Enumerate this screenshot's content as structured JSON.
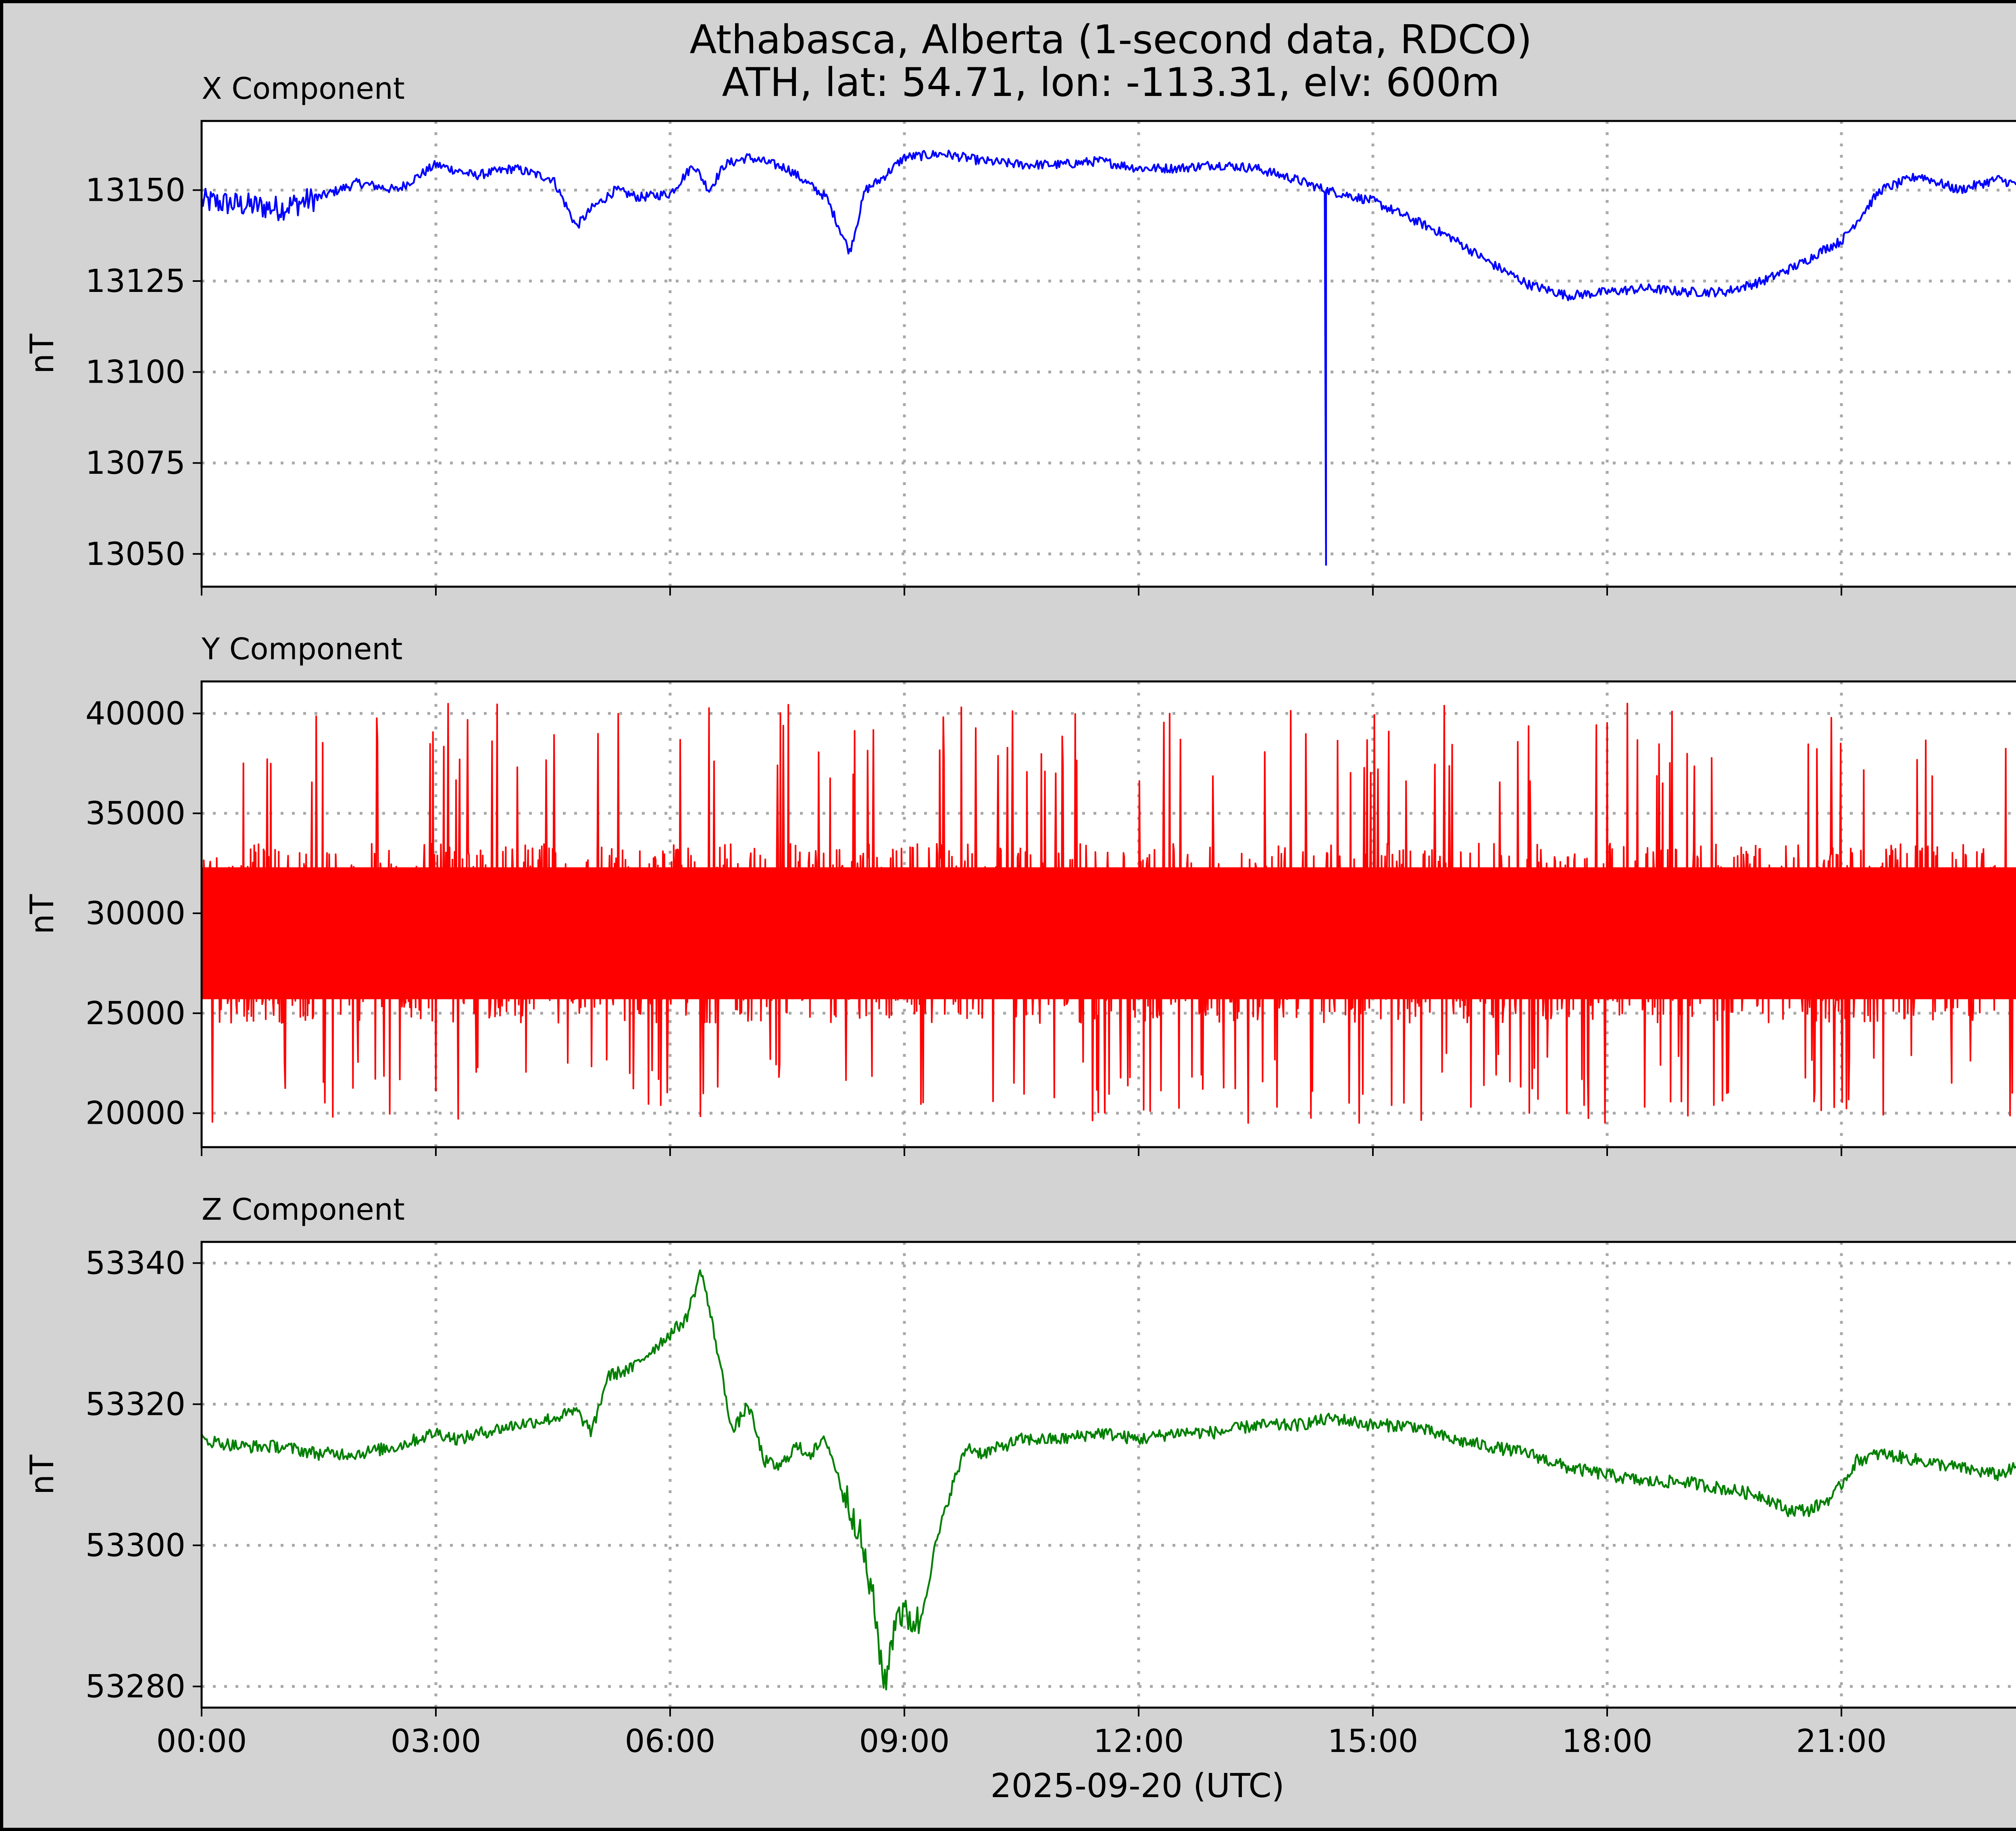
{
  "figure": {
    "title_line1": "Athabasca, Alberta (1-second data, RDCO)",
    "title_line2": "ATH, lat: 54.71, lon: -113.31, elv: 600m",
    "background": "#d3d3d3",
    "grid_color": "#a9a9a9"
  },
  "chart_data": [
    {
      "type": "line",
      "title": "X Component",
      "ylabel": "nT",
      "xlabel": "",
      "color": "#0000ff",
      "grid": true,
      "xlim_hours": [
        0,
        24
      ],
      "ylim": [
        13041,
        13169
      ],
      "yticks": [
        13050,
        13075,
        13100,
        13125,
        13150
      ],
      "ytick_labels": [
        "13050",
        "13075",
        "13100",
        "13125",
        "13150"
      ],
      "x_hours": [
        0,
        0.5,
        1,
        1.5,
        2,
        2.5,
        3,
        3.5,
        4,
        4.5,
        4.8,
        5,
        5.3,
        5.6,
        6,
        6.3,
        6.5,
        6.7,
        7,
        7.5,
        8,
        8.3,
        8.5,
        8.7,
        9,
        9.5,
        10,
        10.5,
        11,
        11.5,
        12,
        12.5,
        13,
        13.5,
        14,
        14.4,
        14.4,
        14.4,
        15,
        15.5,
        16,
        16.5,
        17,
        17.5,
        18,
        18.5,
        19,
        19.5,
        20,
        20.5,
        20.8,
        21,
        21.5,
        22,
        22.5,
        23,
        23.5,
        24
      ],
      "values": [
        13147,
        13146,
        13145,
        13148,
        13152,
        13150,
        13157,
        13154,
        13156,
        13153,
        13140,
        13145,
        13150,
        13148,
        13149,
        13157,
        13150,
        13157,
        13159,
        13156,
        13148,
        13133,
        13150,
        13153,
        13159,
        13160,
        13158,
        13157,
        13157,
        13158,
        13156,
        13156,
        13157,
        13156,
        13153,
        13150,
        13047,
        13150,
        13147,
        13142,
        13137,
        13130,
        13124,
        13121,
        13122,
        13123,
        13122,
        13122,
        13125,
        13130,
        13134,
        13136,
        13150,
        13154,
        13150,
        13153,
        13150,
        13149
      ]
    },
    {
      "type": "line",
      "title": "Y Component",
      "ylabel": "nT",
      "xlabel": "",
      "color": "#ff0000",
      "grid": true,
      "xlim_hours": [
        0,
        24
      ],
      "ylim": [
        18300,
        41600
      ],
      "yticks": [
        20000,
        25000,
        30000,
        35000,
        40000
      ],
      "ytick_labels": [
        "20000",
        "25000",
        "30000",
        "35000",
        "40000"
      ],
      "series_center": 29000,
      "dense_band": [
        24500,
        33500
      ],
      "spike_range": [
        19500,
        40500
      ],
      "note_values": "dense high-amplitude noise throughout the day"
    },
    {
      "type": "line",
      "title": "Z Component",
      "ylabel": "nT",
      "xlabel": "2025-09-20 (UTC)",
      "color": "#008000",
      "grid": true,
      "xlim_hours": [
        0,
        24
      ],
      "ylim": [
        53277,
        53343
      ],
      "yticks": [
        53280,
        53300,
        53320,
        53340
      ],
      "ytick_labels": [
        "53280",
        "53300",
        "53320",
        "53340"
      ],
      "xticks_hours": [
        0,
        3,
        6,
        9,
        12,
        15,
        18,
        21
      ],
      "xtick_labels": [
        "00:00",
        "03:00",
        "06:00",
        "09:00",
        "12:00",
        "15:00",
        "18:00",
        "21:00"
      ],
      "x_hours": [
        0,
        0.5,
        1,
        1.5,
        2,
        2.5,
        3,
        3.3,
        3.6,
        4,
        4.5,
        4.8,
        5,
        5.2,
        5.5,
        5.8,
        6,
        6.2,
        6.4,
        6.6,
        6.8,
        7,
        7.2,
        7.4,
        7.6,
        7.8,
        8,
        8.2,
        8.4,
        8.6,
        8.75,
        8.9,
        9,
        9.2,
        9.4,
        9.6,
        9.8,
        10,
        10.5,
        11,
        11.5,
        12,
        12.5,
        13,
        13.5,
        14,
        14.5,
        15,
        15.5,
        16,
        16.5,
        17,
        17.5,
        18,
        18.5,
        19,
        19.5,
        20,
        20.3,
        20.6,
        20.9,
        21.2,
        21.5,
        22,
        22.5,
        23,
        23.5,
        24
      ],
      "values": [
        53315,
        53314,
        53314,
        53313,
        53313,
        53314,
        53316,
        53315,
        53316,
        53317,
        53318,
        53319,
        53316,
        53324,
        53325,
        53328,
        53330,
        53332,
        53339,
        53328,
        53316,
        53320,
        53312,
        53311,
        53314,
        53313,
        53315,
        53308,
        53303,
        53292,
        53280,
        53291,
        53290,
        53289,
        53300,
        53308,
        53314,
        53313,
        53315,
        53315,
        53316,
        53315,
        53316,
        53316,
        53317,
        53317,
        53318,
        53317,
        53317,
        53315,
        53314,
        53313,
        53311,
        53310,
        53309,
        53309,
        53308,
        53307,
        53305,
        53305,
        53307,
        53312,
        53313,
        53312,
        53311,
        53310,
        53312,
        53310
      ]
    }
  ]
}
